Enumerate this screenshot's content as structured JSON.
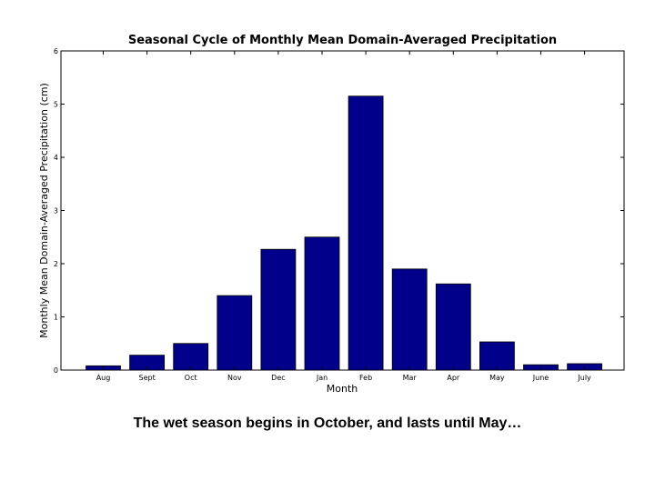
{
  "chart_data": {
    "type": "bar",
    "title": "Seasonal Cycle of Monthly Mean Domain-Averaged Precipitation",
    "xlabel": "Month",
    "ylabel": "Monthly Mean Domain-Averaged Precipitation (cm)",
    "categories": [
      "Aug",
      "Sept",
      "Oct",
      "Nov",
      "Dec",
      "Jan",
      "Feb",
      "Mar",
      "Apr",
      "May",
      "June",
      "July"
    ],
    "values": [
      0.08,
      0.28,
      0.5,
      1.4,
      2.27,
      2.5,
      5.15,
      1.9,
      1.62,
      0.53,
      0.1,
      0.12
    ],
    "ylim": [
      0,
      6
    ],
    "yticks": [
      "0",
      "1",
      "2",
      "3",
      "4",
      "5",
      "6"
    ],
    "bar_color": "#00008B",
    "grid": false,
    "legend": "none"
  },
  "caption": "The wet season begins in October, and lasts until May…"
}
